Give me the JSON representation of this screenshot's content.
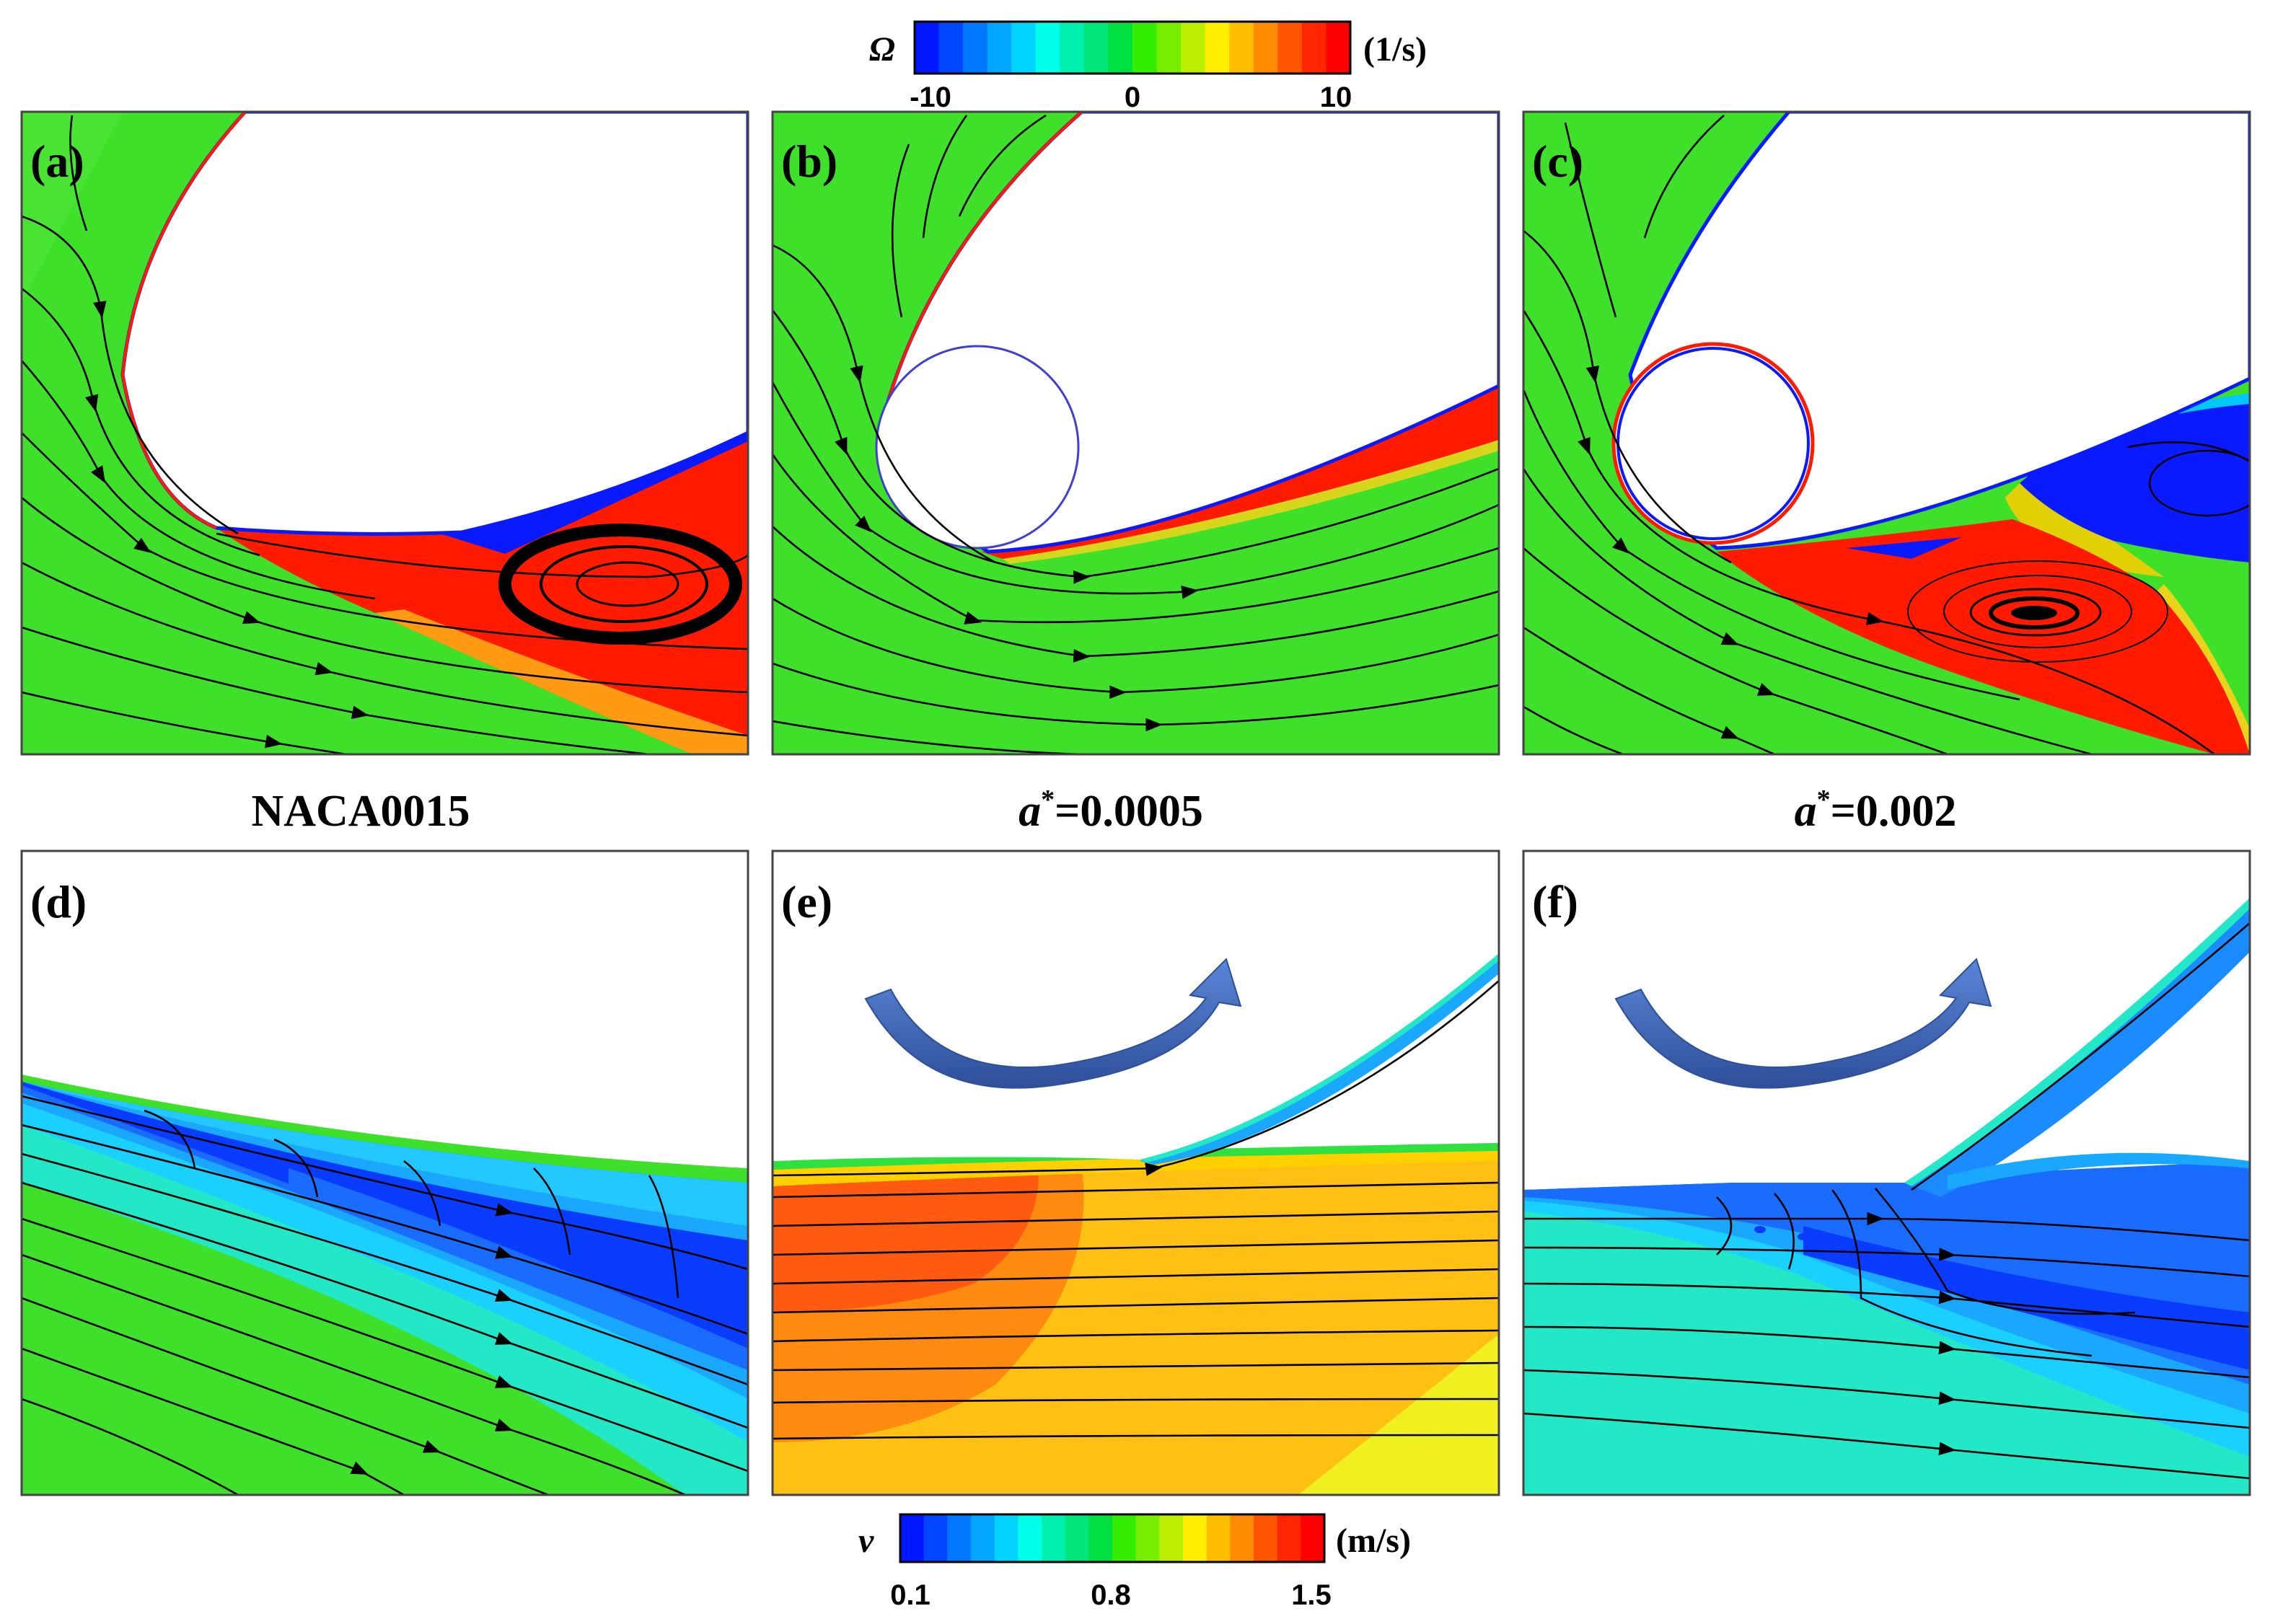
{
  "colorbar_top": {
    "symbol": "Ω",
    "unit": "(1/s)",
    "ticks": [
      "-10",
      "0",
      "10"
    ],
    "min": -10,
    "max": 10,
    "colors": [
      "#0018ff",
      "#0047ff",
      "#0077ff",
      "#00a6ff",
      "#00d4ff",
      "#00ffe8",
      "#00f0b0",
      "#00e67a",
      "#00e040",
      "#33ee00",
      "#77ee00",
      "#bbee00",
      "#ffee00",
      "#ffbf00",
      "#ff8c00",
      "#ff5500",
      "#ff2600",
      "#ff0000"
    ]
  },
  "colorbar_bottom": {
    "symbol": "v",
    "unit": "(m/s)",
    "ticks": [
      "0.1",
      "0.8",
      "1.5"
    ],
    "min": 0.1,
    "max": 1.5,
    "colors": [
      "#0018ff",
      "#0047ff",
      "#0077ff",
      "#00a6ff",
      "#00d4ff",
      "#00ffe8",
      "#00f0b0",
      "#00e67a",
      "#00e040",
      "#33ee00",
      "#77ee00",
      "#bbee00",
      "#ffee00",
      "#ffbf00",
      "#ff8c00",
      "#ff5500",
      "#ff2600",
      "#ff0000"
    ]
  },
  "panels": [
    {
      "label": "(a)"
    },
    {
      "label": "(b)"
    },
    {
      "label": "(c)"
    },
    {
      "label": "(d)"
    },
    {
      "label": "(e)"
    },
    {
      "label": "(f)"
    }
  ],
  "captions": {
    "col1": "NACA0015",
    "col2_prefix": "a",
    "col2_sup": "*",
    "col2_value": "=0.0005",
    "col3_prefix": "a",
    "col3_sup": "*",
    "col3_value": "=0.002"
  },
  "colors": {
    "field_green": "#3ee02a",
    "vortex_red": "#ff1a00",
    "negative_blue": "#0a1aff",
    "low_speed_blue": "#1a6cff",
    "mid_blue": "#1aa8ff",
    "cyan": "#22e8c8",
    "orange": "#ff8a10",
    "amber": "#ffc014",
    "yellow": "#f0f020",
    "arrow_blue": "#3b63b8"
  }
}
